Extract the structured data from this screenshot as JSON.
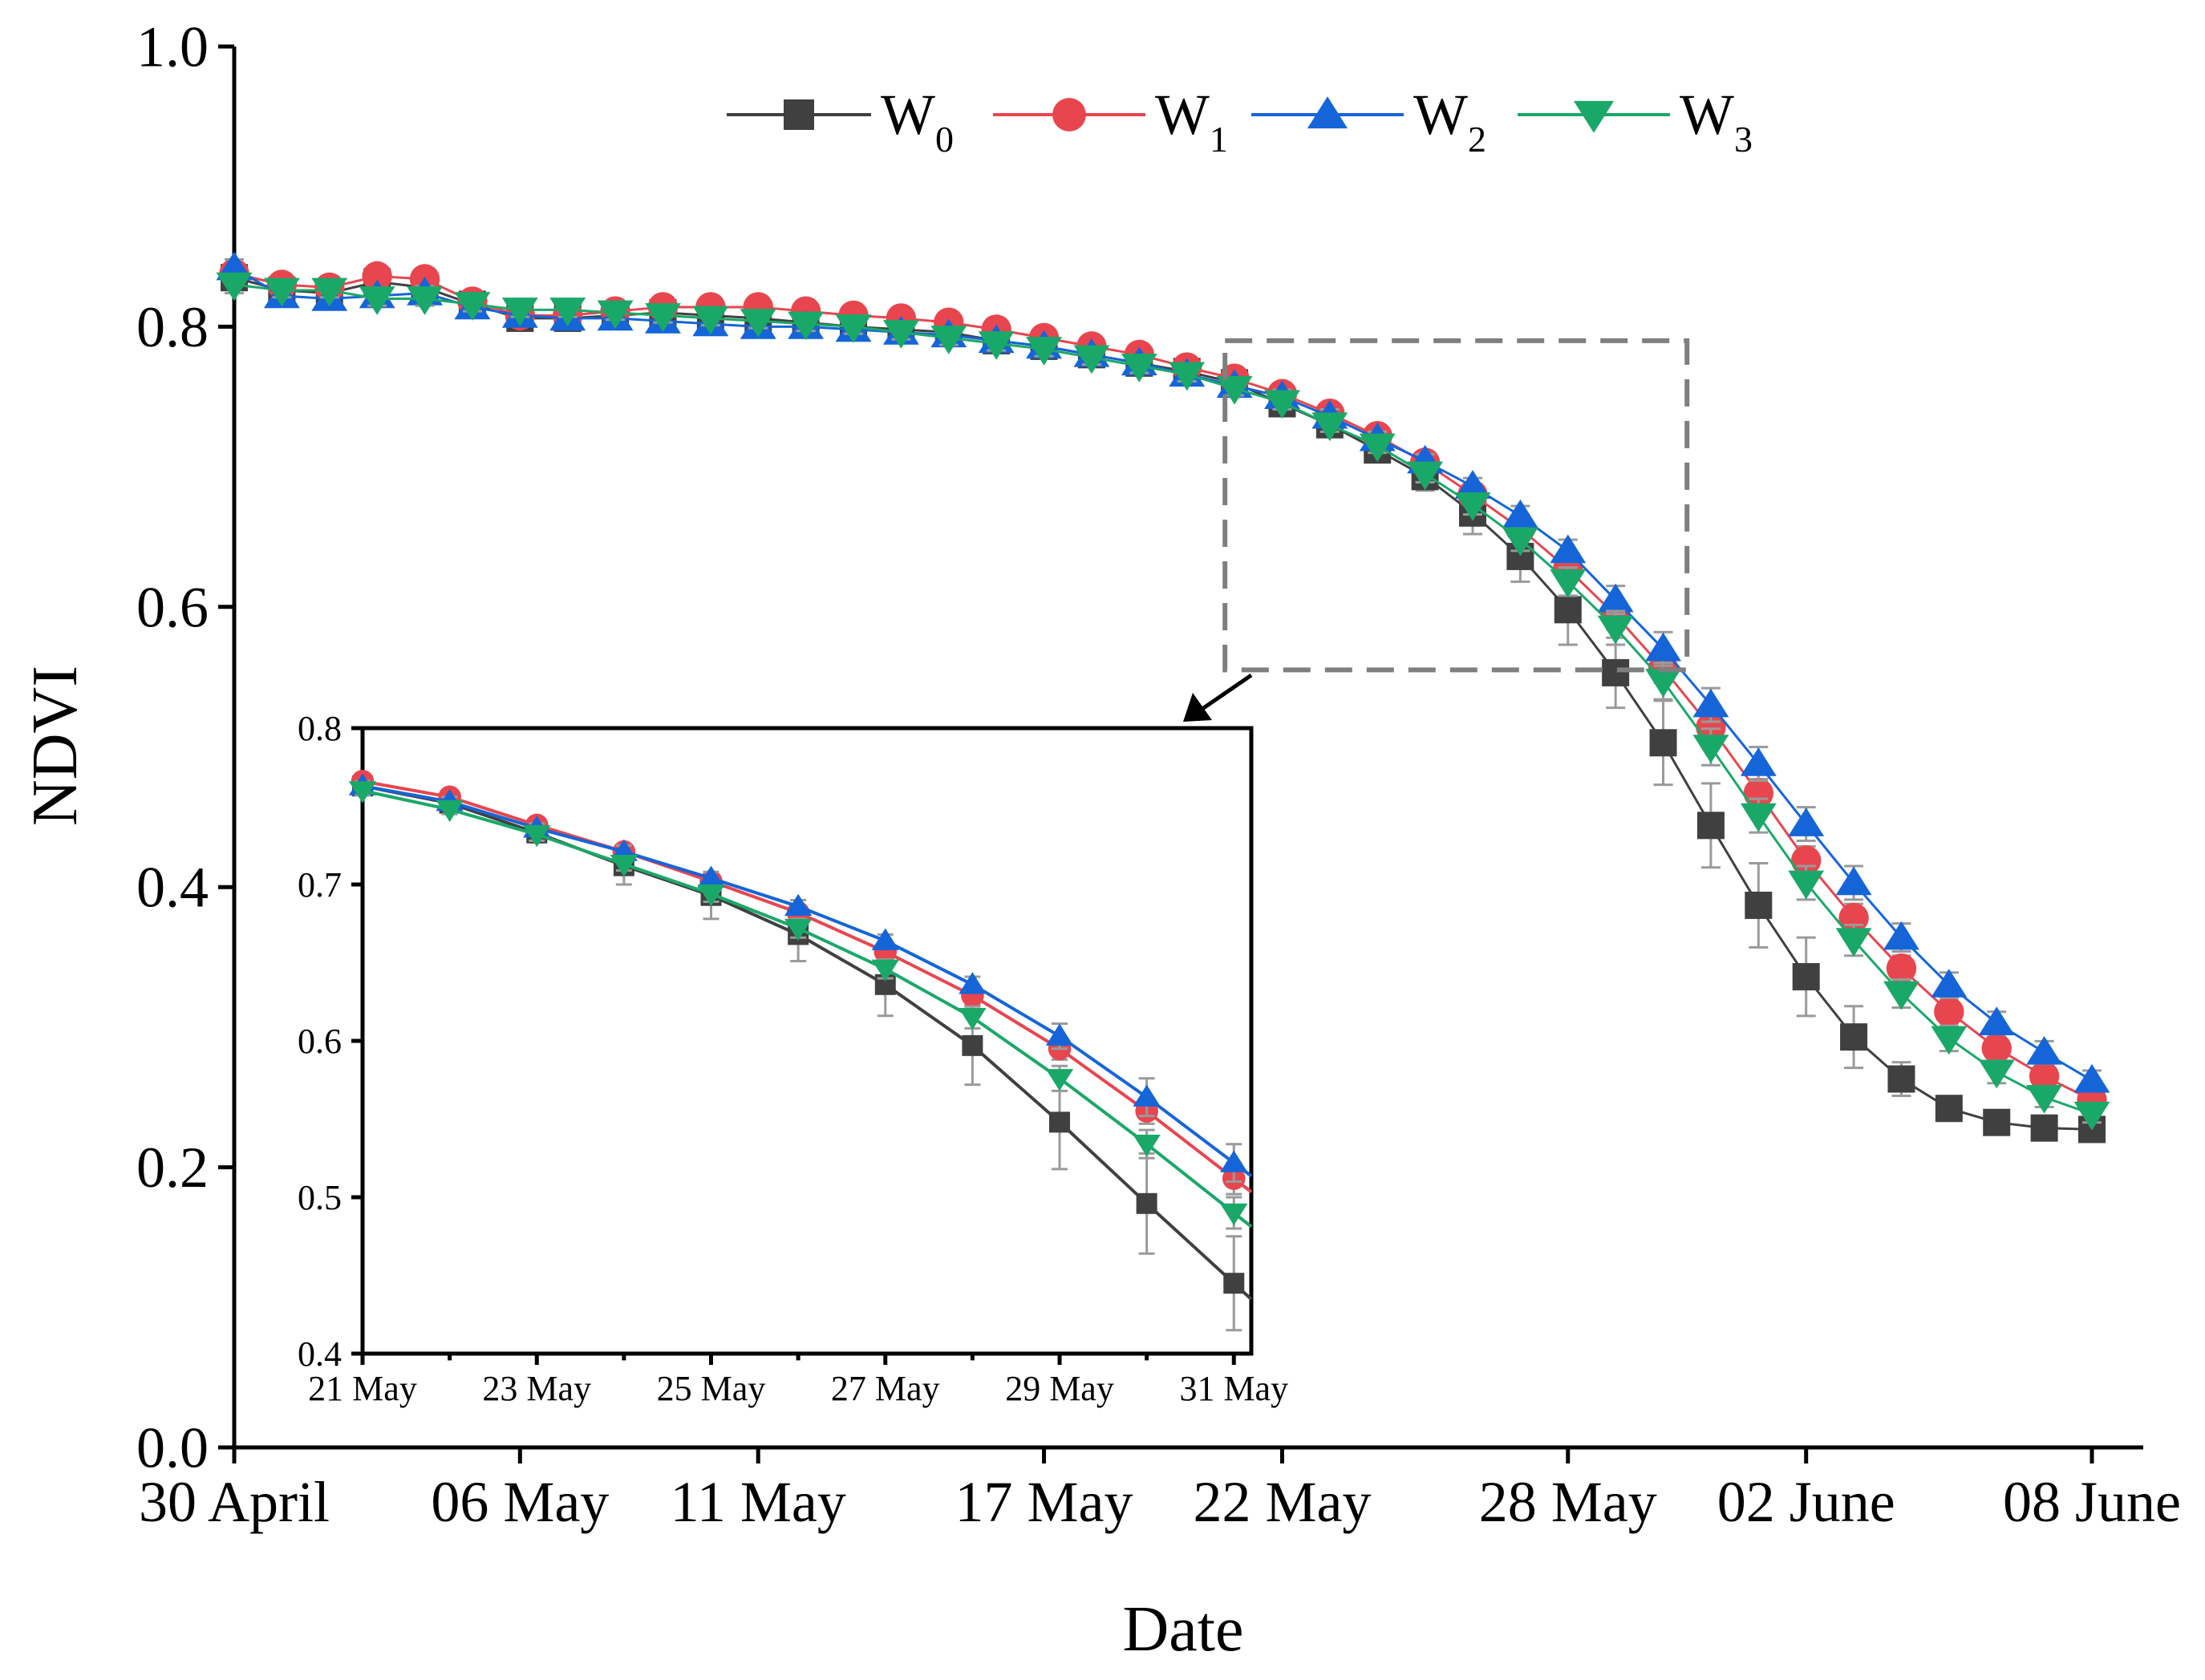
{
  "chart_data": [
    {
      "type": "line",
      "title": "",
      "xlabel": "Date",
      "ylabel": "NDVI",
      "ylim": [
        0.0,
        1.0
      ],
      "xlim": [
        0,
        39
      ],
      "grid": false,
      "legend_position": "top-center",
      "yticks": [
        "0.0",
        "0.2",
        "0.4",
        "0.6",
        "0.8",
        "1.0"
      ],
      "xticks": [
        {
          "day": 0,
          "label": "30 April"
        },
        {
          "day": 6,
          "label": "06 May"
        },
        {
          "day": 11,
          "label": "11 May"
        },
        {
          "day": 17,
          "label": "17 May"
        },
        {
          "day": 22,
          "label": "22 May"
        },
        {
          "day": 28,
          "label": "28 May"
        },
        {
          "day": 33,
          "label": "02 June"
        },
        {
          "day": 39,
          "label": "08 June"
        }
      ],
      "x": [
        0,
        1,
        2,
        3,
        4,
        5,
        6,
        7,
        8,
        9,
        10,
        11,
        12,
        13,
        14,
        15,
        16,
        17,
        18,
        19,
        20,
        21,
        22,
        23,
        24,
        25,
        26,
        27,
        28,
        29,
        30,
        31,
        32,
        33,
        34,
        35,
        36,
        37,
        38,
        39
      ],
      "series": [
        {
          "name": "W",
          "sub": "0",
          "color": "#404040",
          "marker": "square",
          "values": [
            0.835,
            0.826,
            0.824,
            0.832,
            0.828,
            0.816,
            0.806,
            0.806,
            0.808,
            0.81,
            0.808,
            0.806,
            0.803,
            0.8,
            0.798,
            0.796,
            0.79,
            0.786,
            0.78,
            0.774,
            0.768,
            0.76,
            0.745,
            0.73,
            0.712,
            0.693,
            0.667,
            0.636,
            0.598,
            0.553,
            0.503,
            0.444,
            0.387,
            0.336,
            0.293,
            0.263,
            0.242,
            0.232,
            0.228,
            0.227
          ],
          "errors": [
            0.006,
            0.005,
            0.005,
            0.005,
            0.005,
            0.005,
            0.005,
            0.005,
            0.005,
            0.005,
            0.005,
            0.005,
            0.005,
            0.005,
            0.005,
            0.005,
            0.005,
            0.005,
            0.005,
            0.005,
            0.005,
            0.005,
            0.006,
            0.008,
            0.008,
            0.01,
            0.015,
            0.018,
            0.025,
            0.025,
            0.03,
            0.03,
            0.03,
            0.028,
            0.022,
            0.012,
            0.008,
            0.006,
            0.005,
            0.005
          ]
        },
        {
          "name": "W",
          "sub": "1",
          "color": "#e8464e",
          "marker": "circle",
          "values": [
            0.838,
            0.83,
            0.828,
            0.836,
            0.834,
            0.818,
            0.808,
            0.808,
            0.811,
            0.814,
            0.814,
            0.814,
            0.811,
            0.808,
            0.806,
            0.803,
            0.798,
            0.792,
            0.786,
            0.78,
            0.771,
            0.763,
            0.752,
            0.738,
            0.722,
            0.703,
            0.68,
            0.656,
            0.627,
            0.594,
            0.556,
            0.514,
            0.467,
            0.419,
            0.378,
            0.342,
            0.311,
            0.285,
            0.265,
            0.248
          ],
          "errors": [
            0.005,
            0.005,
            0.005,
            0.005,
            0.005,
            0.005,
            0.005,
            0.005,
            0.005,
            0.005,
            0.005,
            0.005,
            0.005,
            0.005,
            0.005,
            0.005,
            0.005,
            0.005,
            0.005,
            0.005,
            0.005,
            0.005,
            0.005,
            0.005,
            0.005,
            0.006,
            0.007,
            0.008,
            0.009,
            0.01,
            0.01,
            0.01,
            0.01,
            0.01,
            0.01,
            0.009,
            0.008,
            0.008,
            0.007,
            0.006
          ]
        },
        {
          "name": "W",
          "sub": "2",
          "color": "#1565d8",
          "marker": "triangle-up",
          "values": [
            0.842,
            0.822,
            0.82,
            0.822,
            0.824,
            0.814,
            0.808,
            0.806,
            0.806,
            0.804,
            0.802,
            0.8,
            0.8,
            0.798,
            0.796,
            0.794,
            0.79,
            0.786,
            0.78,
            0.774,
            0.766,
            0.758,
            0.75,
            0.736,
            0.72,
            0.704,
            0.686,
            0.665,
            0.64,
            0.605,
            0.57,
            0.53,
            0.488,
            0.445,
            0.403,
            0.364,
            0.33,
            0.303,
            0.282,
            0.262
          ],
          "errors": [
            0.006,
            0.005,
            0.005,
            0.005,
            0.005,
            0.005,
            0.005,
            0.005,
            0.005,
            0.005,
            0.005,
            0.005,
            0.005,
            0.005,
            0.005,
            0.005,
            0.005,
            0.005,
            0.005,
            0.005,
            0.005,
            0.005,
            0.005,
            0.005,
            0.005,
            0.005,
            0.006,
            0.007,
            0.008,
            0.01,
            0.012,
            0.012,
            0.012,
            0.012,
            0.012,
            0.01,
            0.009,
            0.008,
            0.008,
            0.007
          ]
        },
        {
          "name": "W",
          "sub": "3",
          "color": "#1aa868",
          "marker": "triangle-down",
          "values": [
            0.83,
            0.826,
            0.826,
            0.82,
            0.82,
            0.816,
            0.812,
            0.812,
            0.81,
            0.808,
            0.806,
            0.804,
            0.802,
            0.8,
            0.796,
            0.792,
            0.788,
            0.784,
            0.778,
            0.772,
            0.766,
            0.756,
            0.746,
            0.73,
            0.715,
            0.695,
            0.673,
            0.648,
            0.618,
            0.585,
            0.547,
            0.5,
            0.451,
            0.403,
            0.362,
            0.324,
            0.292,
            0.268,
            0.25,
            0.238
          ],
          "errors": [
            0.006,
            0.005,
            0.005,
            0.005,
            0.005,
            0.005,
            0.005,
            0.005,
            0.005,
            0.005,
            0.005,
            0.005,
            0.005,
            0.005,
            0.005,
            0.005,
            0.005,
            0.005,
            0.005,
            0.005,
            0.005,
            0.005,
            0.005,
            0.005,
            0.005,
            0.006,
            0.007,
            0.008,
            0.01,
            0.012,
            0.013,
            0.013,
            0.012,
            0.012,
            0.011,
            0.01,
            0.009,
            0.008,
            0.007,
            0.006
          ]
        }
      ]
    },
    {
      "type": "line",
      "title": "",
      "xlabel": "",
      "ylabel": "",
      "ylim": [
        0.4,
        0.8
      ],
      "xlim": [
        21,
        31.2
      ],
      "grid": false,
      "yticks": [
        "0.4",
        "0.5",
        "0.6",
        "0.7",
        "0.8"
      ],
      "xticks": [
        {
          "day": 21,
          "label": "21 May"
        },
        {
          "day": 23,
          "label": "23 May"
        },
        {
          "day": 25,
          "label": "25 May"
        },
        {
          "day": 27,
          "label": "27 May"
        },
        {
          "day": 29,
          "label": "29 May"
        },
        {
          "day": 31,
          "label": "31 May"
        }
      ],
      "x": [
        21,
        22,
        23,
        24,
        25,
        26,
        27,
        28,
        29,
        30,
        31
      ],
      "series": [
        {
          "name": "W",
          "sub": "0",
          "color": "#404040",
          "marker": "square",
          "values": [
            0.763,
            0.752,
            0.733,
            0.712,
            0.693,
            0.668,
            0.636,
            0.597,
            0.548,
            0.496,
            0.445
          ],
          "errors": [
            0.004,
            0.004,
            0.006,
            0.012,
            0.015,
            0.017,
            0.02,
            0.025,
            0.03,
            0.032,
            0.03
          ]
        },
        {
          "name": "W",
          "sub": "1",
          "color": "#e8464e",
          "marker": "circle",
          "values": [
            0.766,
            0.756,
            0.738,
            0.721,
            0.702,
            0.682,
            0.657,
            0.629,
            0.595,
            0.555,
            0.512
          ],
          "errors": [
            0.004,
            0.004,
            0.004,
            0.004,
            0.004,
            0.004,
            0.005,
            0.006,
            0.007,
            0.008,
            0.01
          ]
        },
        {
          "name": "W",
          "sub": "2",
          "color": "#1565d8",
          "marker": "triangle-up",
          "values": [
            0.763,
            0.753,
            0.736,
            0.721,
            0.704,
            0.686,
            0.664,
            0.636,
            0.603,
            0.564,
            0.522
          ],
          "errors": [
            0.003,
            0.003,
            0.003,
            0.004,
            0.004,
            0.004,
            0.004,
            0.005,
            0.008,
            0.012,
            0.012
          ]
        },
        {
          "name": "W",
          "sub": "3",
          "color": "#1aa868",
          "marker": "triangle-down",
          "values": [
            0.76,
            0.748,
            0.732,
            0.713,
            0.694,
            0.672,
            0.646,
            0.615,
            0.576,
            0.534,
            0.49
          ],
          "errors": [
            0.003,
            0.003,
            0.004,
            0.004,
            0.005,
            0.006,
            0.006,
            0.007,
            0.008,
            0.009,
            0.01
          ]
        }
      ]
    }
  ]
}
